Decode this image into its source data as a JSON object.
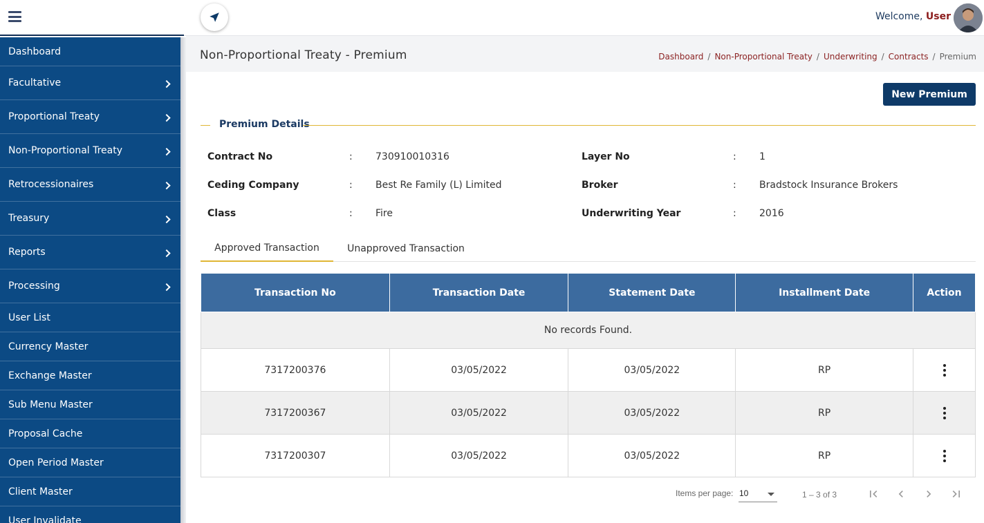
{
  "topbar": {
    "welcome_text": "Welcome,",
    "user_name": "User"
  },
  "sidebar": {
    "items": [
      {
        "label": "Dashboard"
      },
      {
        "label": "Facultative"
      },
      {
        "label": "Proportional Treaty"
      },
      {
        "label": "Non-Proportional Treaty"
      },
      {
        "label": "Retrocessionaires"
      },
      {
        "label": "Treasury"
      },
      {
        "label": "Reports"
      },
      {
        "label": "Processing"
      },
      {
        "label": "User List"
      },
      {
        "label": "Currency Master"
      },
      {
        "label": "Exchange Master"
      },
      {
        "label": "Sub Menu Master"
      },
      {
        "label": "Proposal Cache"
      },
      {
        "label": "Open Period Master"
      },
      {
        "label": "Client Master"
      },
      {
        "label": "User Invalidate"
      }
    ]
  },
  "page": {
    "title": "Non-Proportional Treaty - Premium",
    "breadcrumb": [
      "Dashboard",
      "Non-Proportional Treaty",
      "Underwriting",
      "Contracts",
      "Premium"
    ],
    "breadcrumb_sep": "/",
    "new_button": "New Premium"
  },
  "details": {
    "section_title": "Premium Details",
    "colon": ":",
    "fields": [
      {
        "label": "Contract No",
        "value": "730910010316"
      },
      {
        "label": "Layer No",
        "value": "1"
      },
      {
        "label": "Ceding Company",
        "value": "Best Re Family (L) Limited"
      },
      {
        "label": "Broker",
        "value": "Bradstock Insurance Brokers"
      },
      {
        "label": "Class",
        "value": "Fire"
      },
      {
        "label": "Underwriting Year",
        "value": "2016"
      }
    ]
  },
  "tabs": [
    {
      "label": "Approved Transaction",
      "active": true
    },
    {
      "label": "Unapproved Transaction",
      "active": false
    }
  ],
  "table": {
    "headers": [
      "Transaction No",
      "Transaction Date",
      "Statement Date",
      "Installment Date",
      "Action"
    ],
    "no_records": "No records Found.",
    "rows": [
      [
        "7317200376",
        "03/05/2022",
        "03/05/2022",
        "RP"
      ],
      [
        "7317200367",
        "03/05/2022",
        "03/05/2022",
        "RP"
      ],
      [
        "7317200307",
        "03/05/2022",
        "03/05/2022",
        "RP"
      ]
    ]
  },
  "pager": {
    "items_per_page_label": "Items per page:",
    "page_size": "10",
    "range": "1 – 3 of 3"
  },
  "colors": {
    "sidebar_bg": "#0c4a84",
    "primary_button": "#0e3a68",
    "table_header": "#3c6b9f",
    "accent_gold": "#e0b634",
    "breadcrumb_link": "#8c2323"
  },
  "icons": [
    "hamburger-icon",
    "navigation-arrow-icon",
    "chevron-right-icon",
    "more-vertical-icon",
    "first-page-icon",
    "previous-page-icon",
    "next-page-icon",
    "last-page-icon",
    "dropdown-arrow-icon"
  ]
}
